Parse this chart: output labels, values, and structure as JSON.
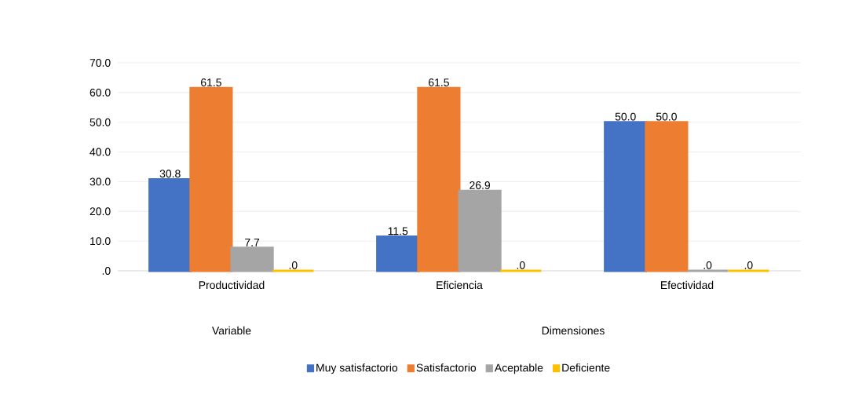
{
  "chart_data": {
    "type": "bar",
    "categories": [
      "Productividad",
      "Eficiencia",
      "Efectividad"
    ],
    "series": [
      {
        "name": "Muy satisfactorio",
        "color": "#4472c4",
        "values": [
          30.8,
          11.5,
          50.0
        ],
        "value_labels": [
          "30.8",
          "11.5",
          "50.0"
        ]
      },
      {
        "name": "Satisfactorio",
        "color": "#ed7d31",
        "values": [
          61.5,
          61.5,
          50.0
        ],
        "value_labels": [
          "61.5",
          "61.5",
          "50.0"
        ]
      },
      {
        "name": "Aceptable",
        "color": "#a5a5a5",
        "values": [
          7.7,
          26.9,
          0
        ],
        "value_labels": [
          "7.7",
          "26.9",
          ".0"
        ]
      },
      {
        "name": "Deficiente",
        "color": "#ffc000",
        "values": [
          0,
          0,
          0
        ],
        "value_labels": [
          ".0",
          ".0",
          ".0"
        ]
      }
    ],
    "ylim": [
      0,
      70
    ],
    "yticks": [
      {
        "value": 0,
        "label": ".0"
      },
      {
        "value": 10,
        "label": "10.0"
      },
      {
        "value": 20,
        "label": "20.0"
      },
      {
        "value": 30,
        "label": "30.0"
      },
      {
        "value": 40,
        "label": "40.0"
      },
      {
        "value": 50,
        "label": "50.0"
      },
      {
        "value": 60,
        "label": "60.0"
      },
      {
        "value": 70,
        "label": "70.0"
      }
    ],
    "grid": "y",
    "legend": "bottom",
    "annotations": [
      "Variable",
      "Dimensiones"
    ]
  }
}
